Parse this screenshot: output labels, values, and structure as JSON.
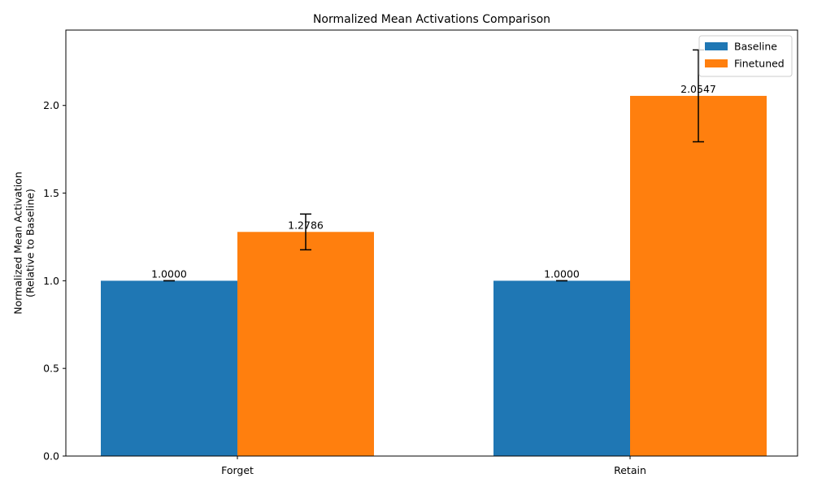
{
  "chart_data": {
    "type": "bar",
    "title": "Normalized Mean Activations Comparison",
    "xlabel": "",
    "ylabel": "Normalized Mean Activation\n(Relative to Baseline)",
    "ylim": [
      0,
      2.43
    ],
    "yticks": [
      0.0,
      0.5,
      1.0,
      1.5,
      2.0
    ],
    "ytick_labels": [
      "0.0",
      "0.5",
      "1.0",
      "1.5",
      "2.0"
    ],
    "categories": [
      "Forget",
      "Retain"
    ],
    "series": [
      {
        "name": "Baseline",
        "color": "#1f77b4",
        "values": [
          1.0,
          1.0
        ],
        "errors": [
          0.0,
          0.0
        ],
        "value_labels": [
          "1.0000",
          "1.0000"
        ]
      },
      {
        "name": "Finetuned",
        "color": "#ff7f0e",
        "values": [
          1.2786,
          2.0547
        ],
        "errors": [
          0.102,
          0.262
        ],
        "value_labels": [
          "1.2786",
          "2.0547"
        ]
      }
    ],
    "grid": false,
    "legend_position": "top-right"
  }
}
